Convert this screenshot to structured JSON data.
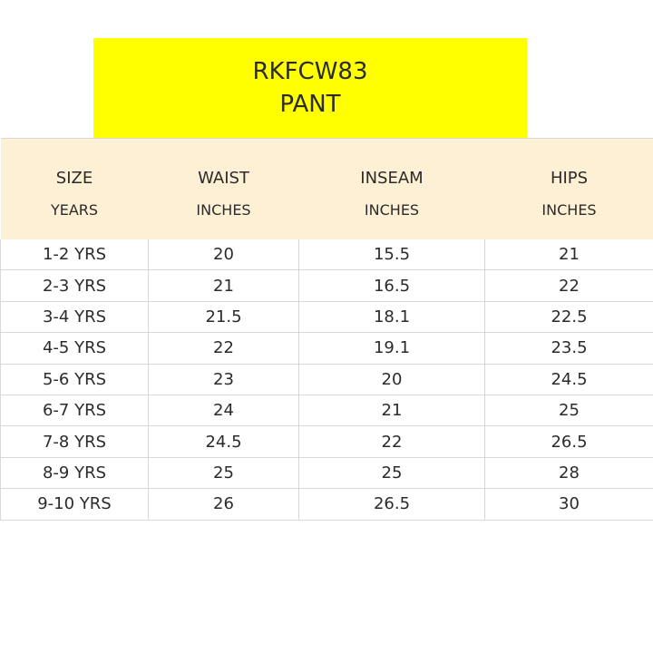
{
  "title": {
    "line1": "RKFCW83",
    "line2": "PANT"
  },
  "table": {
    "headers": [
      {
        "label": "SIZE",
        "unit": "YEARS"
      },
      {
        "label": "WAIST",
        "unit": "INCHES"
      },
      {
        "label": "INSEAM",
        "unit": "INCHES"
      },
      {
        "label": "HIPS",
        "unit": "INCHES"
      }
    ],
    "rows": [
      [
        "1-2 YRS",
        "20",
        "15.5",
        "21"
      ],
      [
        "2-3 YRS",
        "21",
        "16.5",
        "22"
      ],
      [
        "3-4 YRS",
        "21.5",
        "18.1",
        "22.5"
      ],
      [
        "4-5 YRS",
        "22",
        "19.1",
        "23.5"
      ],
      [
        "5-6 YRS",
        "23",
        "20",
        "24.5"
      ],
      [
        "6-7 YRS",
        "24",
        "21",
        "25"
      ],
      [
        "7-8 YRS",
        "24.5",
        "22",
        "26.5"
      ],
      [
        "8-9 YRS",
        "25",
        "25",
        "28"
      ],
      [
        "9-10 YRS",
        "26",
        "26.5",
        "30"
      ]
    ]
  },
  "colors": {
    "title_background": "#ffff00",
    "header_background": "#fdf0d4",
    "grid_lines": "#d8d8d8"
  }
}
